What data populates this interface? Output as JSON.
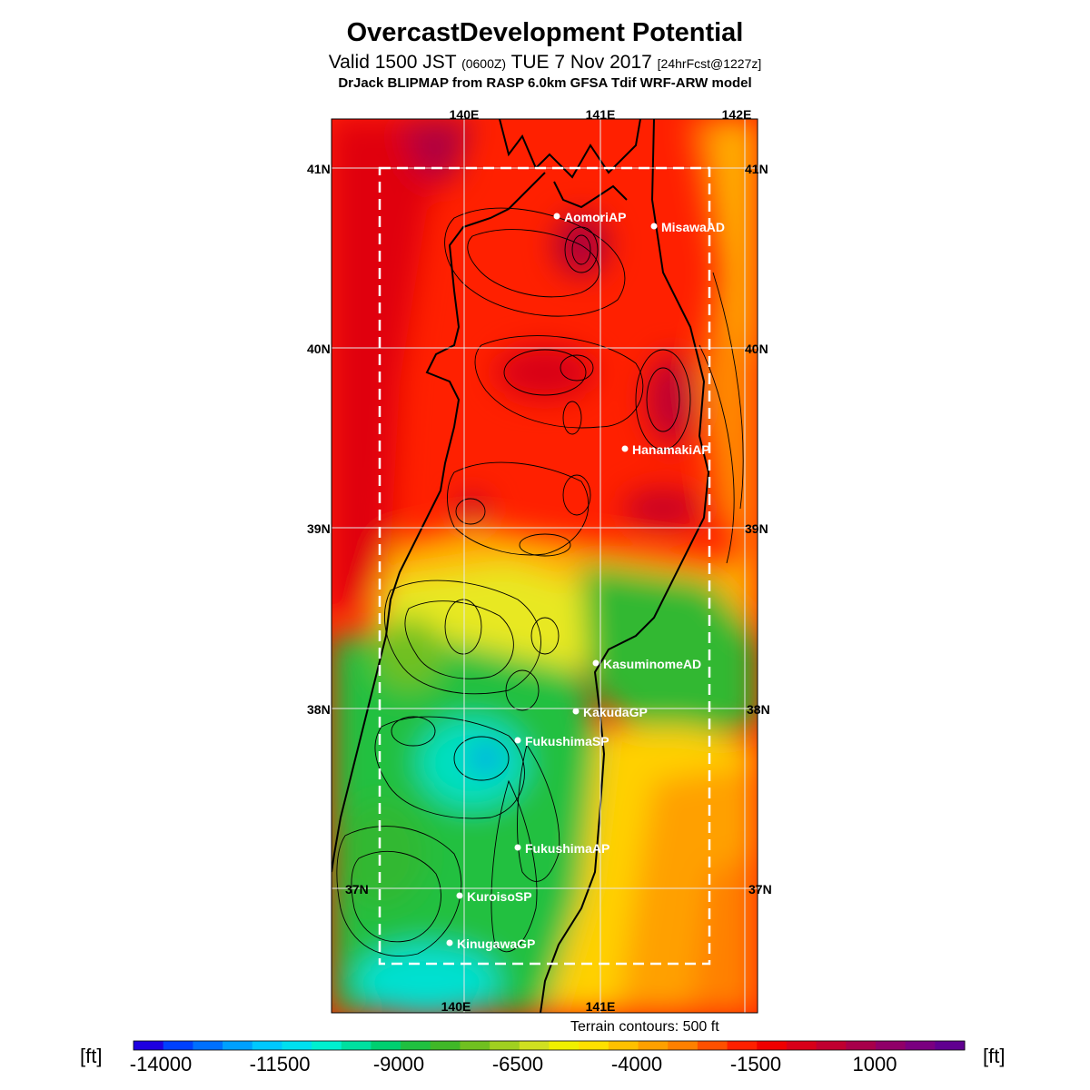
{
  "header": {
    "title": "OvercastDevelopment Potential",
    "valid_prefix": "Valid 1500 JST",
    "valid_utc": "(0600Z)",
    "valid_date": "TUE 7 Nov 2017",
    "forecast_info": "[24hrFcst@1227z]",
    "model_line": "DrJack BLIPMAP from RASP 6.0km GFSA Tdif WRF-ARW model"
  },
  "map": {
    "lon_labels": [
      "140E",
      "141E",
      "142E"
    ],
    "lat_labels": [
      "41N",
      "40N",
      "39N",
      "38N",
      "37N"
    ],
    "stations": [
      {
        "name": "AomoriAP"
      },
      {
        "name": "MisawaAD"
      },
      {
        "name": "HanamakiAP"
      },
      {
        "name": "KasuminomeAD"
      },
      {
        "name": "KakudaGP"
      },
      {
        "name": "FukushimaSP"
      },
      {
        "name": "FukushimaAP"
      },
      {
        "name": "KuroisoSP"
      },
      {
        "name": "KinugawaGP"
      }
    ],
    "terrain_note": "Terrain contours: 500 ft"
  },
  "colorbar": {
    "unit_label": "[ft]",
    "tick_labels": [
      "-14000",
      "-11500",
      "-9000",
      "-6500",
      "-4000",
      "-1500",
      "1000"
    ],
    "colors": [
      "#1e00e0",
      "#0040ff",
      "#0070ff",
      "#00a0ff",
      "#00c8ff",
      "#00e0f0",
      "#00f0d0",
      "#00e0a0",
      "#00d070",
      "#20c040",
      "#40b828",
      "#70c020",
      "#a0d020",
      "#d0e020",
      "#f0f000",
      "#ffe000",
      "#ffc000",
      "#ffa000",
      "#ff8000",
      "#ff5000",
      "#ff2000",
      "#f00000",
      "#d80018",
      "#c00030",
      "#a8004a",
      "#900068",
      "#7a0080",
      "#600090"
    ]
  }
}
